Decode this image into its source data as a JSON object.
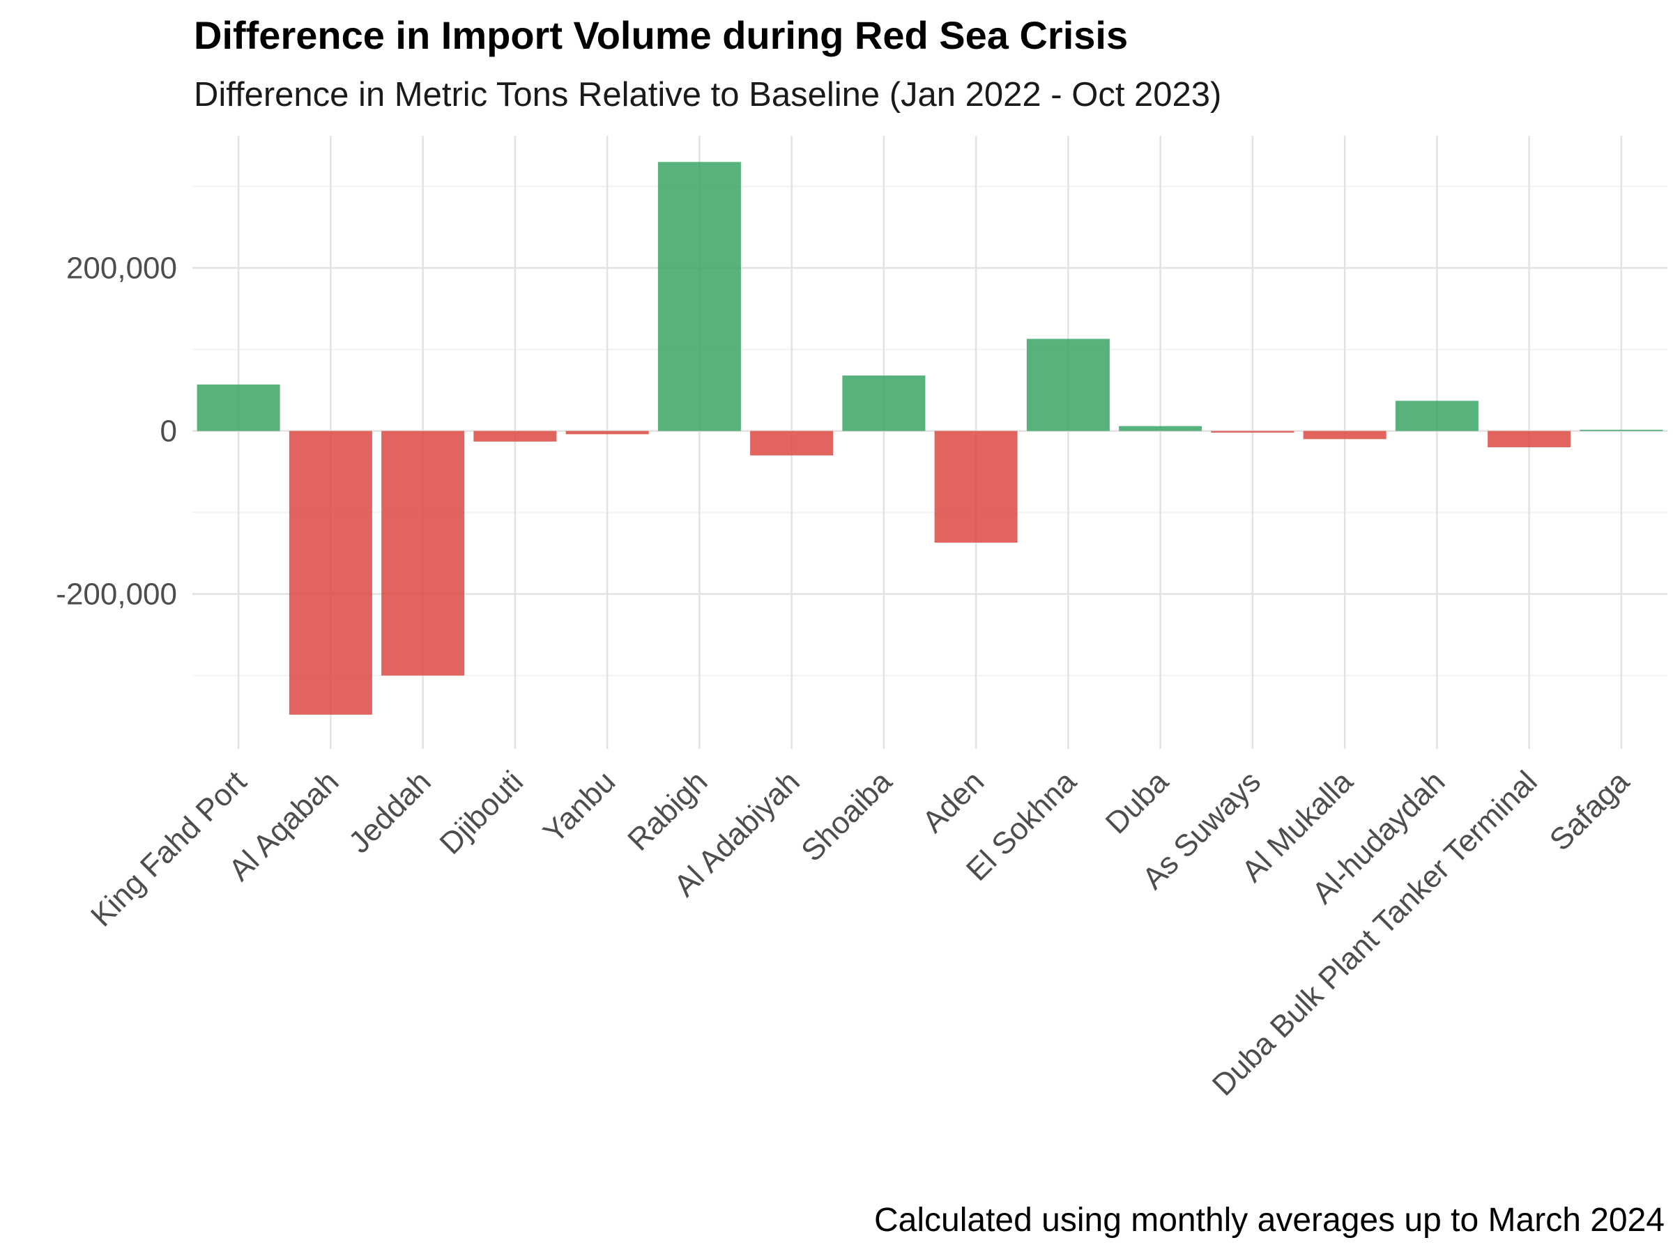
{
  "chart_data": {
    "type": "bar",
    "title": "Difference in Import Volume during Red Sea Crisis",
    "subtitle": "Difference in Metric Tons Relative to Baseline (Jan 2022 - Oct 2023)",
    "caption": "Calculated using monthly averages up to March 2024",
    "xlabel": "",
    "ylabel": "",
    "categories": [
      "King Fahd Port",
      "Al Aqabah",
      "Jeddah",
      "Djibouti",
      "Yanbu",
      "Rabigh",
      "Al Adabiyah",
      "Shoaiba",
      "Aden",
      "El Sokhna",
      "Duba",
      "As Suways",
      "Al Mukalla",
      "Al-hudaydah",
      "Duba Bulk Plant Tanker Terminal",
      "Safaga"
    ],
    "values": [
      57000,
      -348000,
      -300000,
      -13000,
      -4000,
      330000,
      -30000,
      68000,
      -137000,
      113000,
      6000,
      -2000,
      -10000,
      37000,
      -20000,
      1500
    ],
    "ylim": [
      -390000,
      362000
    ],
    "yticks": [
      -200000,
      0,
      200000
    ],
    "ytick_labels": [
      "-200,000",
      "0",
      "200,000"
    ],
    "grid": true,
    "legend": "none",
    "colors": {
      "positive": "#3aa565",
      "negative": "#dc4a42",
      "grid_major": "#e2e2e2",
      "grid_minor": "#f2f2f2"
    }
  }
}
